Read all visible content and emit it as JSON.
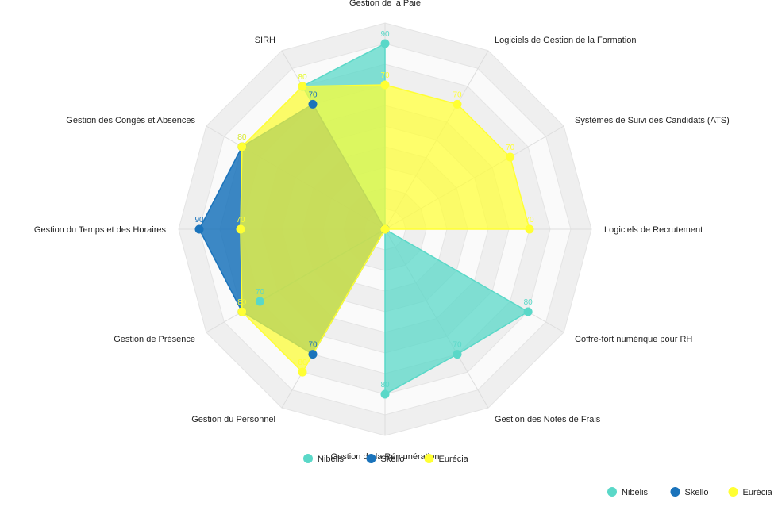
{
  "chart_data": {
    "type": "radar",
    "categories": [
      "Gestion de la Paie",
      "Logiciels de Gestion de la Formation",
      "Systèmes de Suivi des Candidats (ATS)",
      "Logiciels de Recrutement",
      "Coffre-fort numérique pour RH",
      "Gestion des Notes de Frais",
      "Gestion de la Rémunération",
      "Gestion du Personnel",
      "Gestion de Présence",
      "Gestion du Temps et des Horaires",
      "Gestion des Congés et Absences",
      "SIRH"
    ],
    "rlim": [
      0,
      100
    ],
    "series": [
      {
        "name": "Nibelis",
        "color": "#5ad8c8",
        "values": [
          90,
          0,
          0,
          0,
          80,
          70,
          80,
          0,
          70,
          0,
          0,
          80
        ]
      },
      {
        "name": "Skello",
        "color": "#1a73bb",
        "values": [
          0,
          0,
          0,
          0,
          0,
          0,
          0,
          70,
          80,
          90,
          80,
          70
        ]
      },
      {
        "name": "Eurécia",
        "color": "#ffff33",
        "values": [
          70,
          70,
          70,
          70,
          0,
          0,
          0,
          80,
          80,
          70,
          80,
          80
        ]
      }
    ],
    "legend": [
      "Nibelis",
      "Skello",
      "Eurécia"
    ],
    "legend_position": "bottom"
  }
}
